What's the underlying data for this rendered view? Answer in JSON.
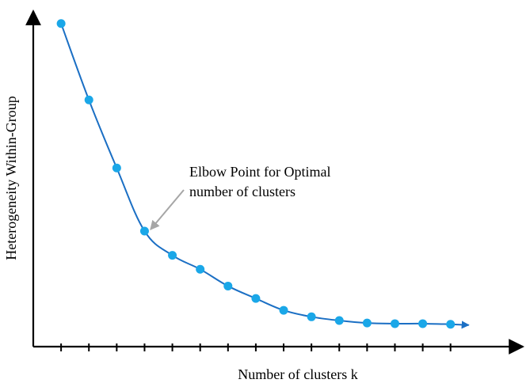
{
  "chart_data": {
    "type": "line",
    "title": "",
    "xlabel": "Number of clusters k",
    "ylabel": "Heterogeneity Within-Group",
    "x": [
      1,
      2,
      3,
      4,
      5,
      6,
      7,
      8,
      9,
      10,
      11,
      12,
      13,
      14,
      15
    ],
    "series": [
      {
        "values": [
          100,
          75.4,
          53.5,
          33.2,
          25.4,
          20.9,
          15.5,
          11.5,
          7.7,
          5.6,
          4.4,
          3.6,
          3.4,
          3.4,
          3.2
        ],
        "color": "#1AA7E8",
        "line_color": "#1B6FC4"
      }
    ],
    "xlim": [
      0,
      17.6
    ],
    "ylim": [
      -4,
      104
    ],
    "x_ticks_shown": false,
    "y_ticks_shown": false,
    "x_tick_marks": [
      1,
      2,
      3,
      4,
      5,
      6,
      7,
      8,
      9,
      10,
      11,
      12,
      13,
      14,
      15
    ],
    "grid": false,
    "annotations": [
      {
        "text_lines": [
          "Elbow Point for Optimal",
          "number of clusters"
        ],
        "points_to_x": 4,
        "arrow_color": "#A6A6A6"
      }
    ],
    "axis_color": "#000000"
  }
}
